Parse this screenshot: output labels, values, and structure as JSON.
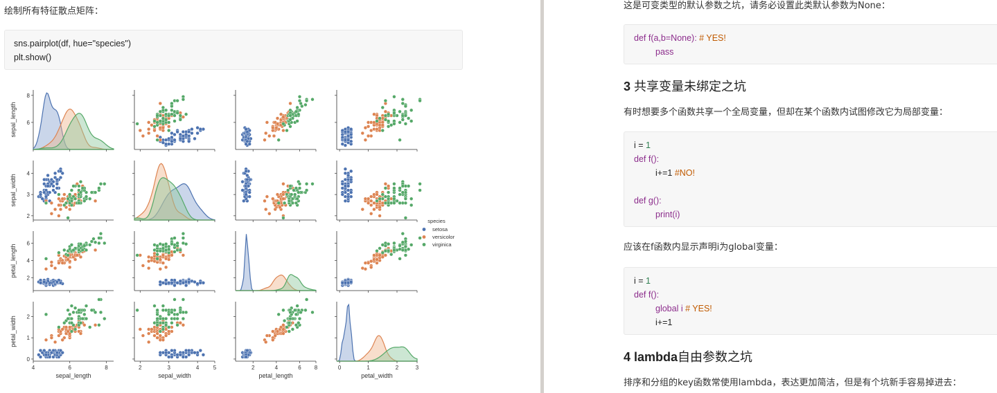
{
  "left": {
    "intro": "绘制所有特征散点矩阵：",
    "code_lines": [
      "sns.pairplot(df, hue=\"species\")",
      "plt.show()"
    ]
  },
  "right": {
    "p1": "这是可变类型的默认参数之坑，请务必设置此类默认参数为None：",
    "code1": {
      "l1_code": "def f(a,b=None): ",
      "l1_comment": "# YES!",
      "l2": "pass"
    },
    "h3_num": "3 ",
    "h3_text": "共享变量未绑定之坑",
    "p2": "有时想要多个函数共享一个全局变量，但却在某个函数内试图修改它为局部变量：",
    "code2": {
      "l1_a": "i = ",
      "l1_b": "1",
      "l2": "def f():",
      "l3_a": "i+=1 ",
      "l3_b": "#NO!",
      "l4": "def g():",
      "l5": "print(i)"
    },
    "p3": "应该在f函数内显示声明i为global变量：",
    "code3": {
      "l1_a": "i = ",
      "l1_b": "1",
      "l2": "def f():",
      "l3_a": "global i ",
      "l3_b": "# YES!",
      "l4": "i+=1"
    },
    "h4_num": "4 lambda",
    "h4_text": "自由参数之坑",
    "p4": "排序和分组的key函数常使用lambda，表达更加简洁，但是有个坑新手容易掉进去："
  },
  "chart_data": {
    "type": "scatter",
    "subtype": "pairplot",
    "variables": [
      "sepal_length",
      "sepal_width",
      "petal_length",
      "petal_width"
    ],
    "hue": "species",
    "legend_title": "species",
    "legend_position": "right",
    "series": [
      {
        "name": "setosa",
        "color": "#4c72b0"
      },
      {
        "name": "versicolor",
        "color": "#dd8452"
      },
      {
        "name": "virginica",
        "color": "#55a868"
      }
    ],
    "axes": {
      "sepal_length": {
        "lim": [
          4.0,
          8.4
        ],
        "ticks": [
          4,
          6,
          8
        ],
        "y_ticks": [
          6,
          8
        ]
      },
      "sepal_width": {
        "lim": [
          1.8,
          4.6
        ],
        "ticks": [
          2,
          3,
          4,
          5
        ],
        "y_ticks": [
          2,
          3,
          4
        ]
      },
      "petal_length": {
        "lim": [
          0.5,
          7.4
        ],
        "ticks": [
          2,
          4,
          6,
          8
        ],
        "y_ticks": [
          2,
          4,
          6
        ]
      },
      "petal_width": {
        "lim": [
          -0.1,
          2.7
        ],
        "ticks": [
          0,
          1,
          2,
          3
        ],
        "y_ticks": [
          0,
          1,
          2
        ]
      }
    },
    "grid": false
  }
}
